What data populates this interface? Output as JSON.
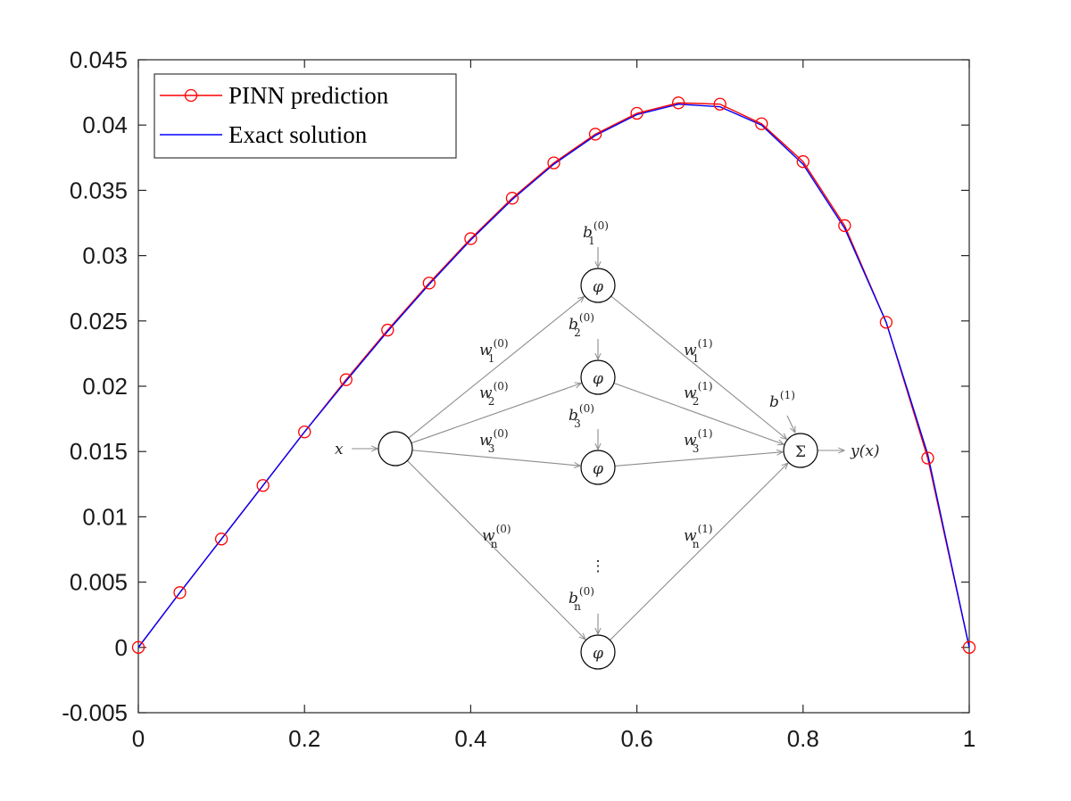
{
  "chart_data": {
    "type": "line",
    "title": "",
    "xlabel": "",
    "ylabel": "",
    "xlim": [
      0,
      1
    ],
    "ylim": [
      -0.005,
      0.045
    ],
    "x_ticks": [
      0,
      0.2,
      0.4,
      0.6,
      0.8,
      1
    ],
    "x_tick_labels": [
      "0",
      "0.2",
      "0.4",
      "0.6",
      "0.8",
      "1"
    ],
    "y_ticks": [
      -0.005,
      0,
      0.005,
      0.01,
      0.015,
      0.02,
      0.025,
      0.03,
      0.035,
      0.04,
      0.045
    ],
    "y_tick_labels": [
      "-0.005",
      "0",
      "0.005",
      "0.01",
      "0.015",
      "0.02",
      "0.025",
      "0.03",
      "0.035",
      "0.04",
      "0.045"
    ],
    "grid": false,
    "legend_position": "top-left",
    "series": [
      {
        "name": "PINN prediction",
        "color": "#ff0000",
        "marker": "circle",
        "x": [
          0,
          0.05,
          0.1,
          0.15,
          0.2,
          0.25,
          0.3,
          0.35,
          0.4,
          0.45,
          0.5,
          0.55,
          0.6,
          0.65,
          0.7,
          0.75,
          0.8,
          0.85,
          0.9,
          0.95,
          1.0
        ],
        "y": [
          0,
          0.0042,
          0.0083,
          0.0124,
          0.0165,
          0.0205,
          0.0243,
          0.0279,
          0.0313,
          0.0344,
          0.0371,
          0.0393,
          0.0409,
          0.0417,
          0.0416,
          0.0401,
          0.0372,
          0.0323,
          0.0249,
          0.0145,
          0
        ]
      },
      {
        "name": "Exact solution",
        "color": "#0000ff",
        "marker": "none",
        "x": [
          0,
          0.05,
          0.1,
          0.15,
          0.2,
          0.25,
          0.3,
          0.35,
          0.4,
          0.45,
          0.5,
          0.55,
          0.6,
          0.65,
          0.7,
          0.75,
          0.8,
          0.85,
          0.9,
          0.95,
          1.0
        ],
        "y": [
          0,
          0.0042,
          0.0083,
          0.0124,
          0.0165,
          0.0204,
          0.0242,
          0.0278,
          0.0312,
          0.0343,
          0.037,
          0.0392,
          0.0408,
          0.0416,
          0.0414,
          0.04,
          0.037,
          0.0321,
          0.0249,
          0.0148,
          0
        ]
      }
    ],
    "network_diagram": {
      "input_label": "x",
      "output_label": "y(x)",
      "hidden_node_label": "φ",
      "sum_label": "Σ",
      "dots": "⋮",
      "output_bias": {
        "base": "b",
        "sup": "(1)"
      },
      "hidden": [
        {
          "bias_base": "b",
          "bias_sub": "1",
          "bias_sup": "(0)",
          "w_in_base": "w",
          "w_in_sub": "1",
          "w_in_sup": "(0)",
          "w_out_base": "w",
          "w_out_sub": "1",
          "w_out_sup": "(1)"
        },
        {
          "bias_base": "b",
          "bias_sub": "2",
          "bias_sup": "(0)",
          "w_in_base": "w",
          "w_in_sub": "2",
          "w_in_sup": "(0)",
          "w_out_base": "w",
          "w_out_sub": "2",
          "w_out_sup": "(1)"
        },
        {
          "bias_base": "b",
          "bias_sub": "3",
          "bias_sup": "(0)",
          "w_in_base": "w",
          "w_in_sub": "3",
          "w_in_sup": "(0)",
          "w_out_base": "w",
          "w_out_sub": "3",
          "w_out_sup": "(1)"
        },
        {
          "bias_base": "b",
          "bias_sub": "n",
          "bias_sup": "(0)",
          "w_in_base": "w",
          "w_in_sub": "n",
          "w_in_sup": "(0)",
          "w_out_base": "w",
          "w_out_sub": "n",
          "w_out_sup": "(1)"
        }
      ]
    }
  }
}
